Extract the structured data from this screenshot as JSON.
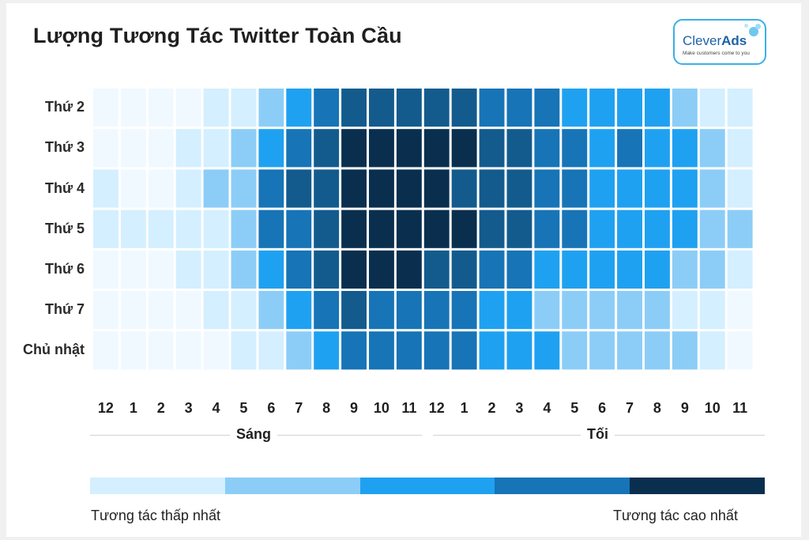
{
  "title": "Lượng Tương Tác Twitter Toàn Cầu",
  "logo": {
    "brand_plain": "Clever",
    "brand_bold": "Ads",
    "tagline": "Make customers come to you"
  },
  "legend": {
    "low_label": "Tương tác thấp nhất",
    "high_label": "Tương tác cao nhất",
    "colors": [
      "#d4efff",
      "#8ccdf7",
      "#1fa1f1",
      "#1774b6",
      "#0a2f4e"
    ]
  },
  "colors": {
    "level_0": "#f0f9ff",
    "level_1": "#d4efff",
    "level_2": "#8ccdf7",
    "level_3": "#1fa1f1",
    "level_4": "#1774b6",
    "level_5": "#135b8d",
    "level_6": "#0a2f4e"
  },
  "chart_data": {
    "type": "heatmap",
    "title": "Lượng Tương Tác Twitter Toàn Cầu",
    "rows": [
      "Thứ 2",
      "Thứ 3",
      "Thứ 4",
      "Thứ 5",
      "Thứ 6",
      "Thứ 7",
      "Chủ nhật"
    ],
    "columns": [
      "12",
      "1",
      "2",
      "3",
      "4",
      "5",
      "6",
      "7",
      "8",
      "9",
      "10",
      "11",
      "12",
      "1",
      "2",
      "3",
      "4",
      "5",
      "6",
      "7",
      "8",
      "9",
      "10",
      "11"
    ],
    "periods": [
      {
        "label": "Sáng",
        "hours": 12
      },
      {
        "label": "Tối",
        "hours": 12
      }
    ],
    "scale": {
      "min": 0,
      "max": 6
    },
    "values": [
      [
        0,
        0,
        0,
        0,
        1,
        1,
        2,
        3,
        4,
        5,
        5,
        5,
        5,
        5,
        4,
        4,
        4,
        3,
        3,
        3,
        3,
        2,
        1,
        1
      ],
      [
        0,
        0,
        0,
        1,
        1,
        2,
        3,
        4,
        5,
        6,
        6,
        6,
        6,
        6,
        5,
        5,
        4,
        4,
        3,
        4,
        3,
        3,
        2,
        1
      ],
      [
        1,
        0,
        0,
        1,
        2,
        2,
        4,
        5,
        5,
        6,
        6,
        6,
        6,
        5,
        5,
        5,
        4,
        4,
        3,
        3,
        3,
        3,
        2,
        1
      ],
      [
        1,
        1,
        1,
        1,
        1,
        2,
        4,
        4,
        5,
        6,
        6,
        6,
        6,
        6,
        5,
        5,
        4,
        4,
        3,
        3,
        3,
        3,
        2,
        2
      ],
      [
        0,
        0,
        0,
        1,
        1,
        2,
        3,
        4,
        5,
        6,
        6,
        6,
        5,
        5,
        4,
        4,
        3,
        3,
        3,
        3,
        3,
        2,
        2,
        1
      ],
      [
        0,
        0,
        0,
        0,
        1,
        1,
        2,
        3,
        4,
        5,
        4,
        4,
        4,
        4,
        3,
        3,
        2,
        2,
        2,
        2,
        2,
        1,
        1,
        0
      ],
      [
        0,
        0,
        0,
        0,
        0,
        1,
        1,
        2,
        3,
        4,
        4,
        4,
        4,
        4,
        3,
        3,
        3,
        2,
        2,
        2,
        2,
        2,
        1,
        0
      ]
    ]
  }
}
